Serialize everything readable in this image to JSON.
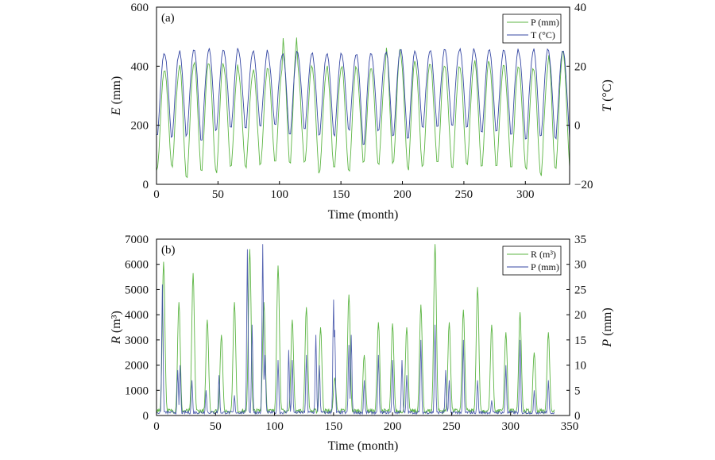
{
  "chart_data": [
    {
      "type": "line",
      "panel_label": "(a)",
      "xlabel": "Time (month)",
      "ylabel_left": {
        "italic": "E",
        "rest": " (mm)"
      },
      "ylabel_right": {
        "italic": "T",
        "rest": " (°C)"
      },
      "xlim": [
        0,
        336
      ],
      "ylim_left": [
        0,
        600
      ],
      "ylim_right": [
        -20,
        40
      ],
      "xticks": [
        0,
        50,
        100,
        150,
        200,
        250,
        300
      ],
      "yticks_left": [
        0,
        200,
        400,
        600
      ],
      "yticks_right": [
        -20,
        0,
        20,
        40
      ],
      "legend": {
        "position": "top-right",
        "entries": [
          "P (mm)",
          "T (°C)"
        ]
      },
      "colors": {
        "green": "#5cb543",
        "blue": "#3547a3"
      },
      "series": [
        {
          "name": "P (mm)",
          "axis": "left",
          "color_key": "green",
          "year_peaks": [
            390,
            385,
            410,
            420,
            415,
            405,
            380,
            395,
            400,
            505,
            405,
            395,
            400,
            400,
            395,
            395,
            470,
            430,
            415,
            410,
            395,
            405,
            420,
            410,
            400,
            395,
            395,
            450
          ],
          "year_troughs": [
            40,
            50,
            5,
            35,
            30,
            50,
            45,
            60,
            60,
            55,
            60,
            30,
            40,
            30,
            60,
            60,
            60,
            40,
            45,
            65,
            50,
            60,
            50,
            50,
            50,
            40,
            20,
            35
          ]
        },
        {
          "name": "T (°C)",
          "axis": "right",
          "color_key": "blue",
          "year_peaks": [
            25,
            24.5,
            25.5,
            25.5,
            26,
            26,
            25,
            25.5,
            24,
            25,
            24.5,
            24.5,
            24.5,
            24,
            24.5,
            24.5,
            25.5,
            26,
            25,
            25.5,
            25.5,
            26,
            25.5,
            26,
            26,
            25,
            26,
            25.5
          ],
          "year_troughs": [
            -5,
            -5.5,
            -5,
            -6.5,
            -3,
            -2.5,
            -2,
            -1.5,
            -1.5,
            -5,
            -3,
            -5,
            -5,
            -3,
            -8,
            -3,
            -5,
            -6.5,
            -2,
            -2,
            -1.5,
            -2,
            -3.5,
            -4,
            -4.5,
            -6,
            -5.5,
            -6
          ]
        }
      ]
    },
    {
      "type": "line",
      "panel_label": "(b)",
      "xlabel": "Time (month)",
      "ylabel_left": {
        "italic": "R",
        "rest": " (m³)"
      },
      "ylabel_right": {
        "italic": "P",
        "rest": " (mm)"
      },
      "xlim": [
        0,
        350
      ],
      "ylim_left": [
        0,
        7000
      ],
      "ylim_right": [
        0,
        35
      ],
      "xticks": [
        0,
        50,
        100,
        150,
        200,
        250,
        300,
        350
      ],
      "yticks_left": [
        0,
        1000,
        2000,
        3000,
        4000,
        5000,
        6000,
        7000
      ],
      "yticks_right": [
        0,
        5,
        10,
        15,
        20,
        25,
        30,
        35
      ],
      "legend": {
        "position": "top-right",
        "entries": [
          "R (m³)",
          "P (mm)"
        ]
      },
      "data_extent_months": 337,
      "series": [
        {
          "name": "R (m³)",
          "axis": "left",
          "color_key": "green",
          "baseline": 180,
          "peaks": [
            [
              6,
              6100
            ],
            [
              19,
              4500
            ],
            [
              31,
              5650
            ],
            [
              43,
              3800
            ],
            [
              55,
              3200
            ],
            [
              66,
              4500
            ],
            [
              79,
              6600
            ],
            [
              91,
              4500
            ],
            [
              103,
              5950
            ],
            [
              115,
              3800
            ],
            [
              127,
              4300
            ],
            [
              139,
              3500
            ],
            [
              151,
              1500
            ],
            [
              163,
              4800
            ],
            [
              176,
              2400
            ],
            [
              188,
              3700
            ],
            [
              200,
              3650
            ],
            [
              212,
              3500
            ],
            [
              224,
              4400
            ],
            [
              236,
              6800
            ],
            [
              248,
              3700
            ],
            [
              260,
              4200
            ],
            [
              272,
              5100
            ],
            [
              284,
              3600
            ],
            [
              296,
              3300
            ],
            [
              308,
              4100
            ],
            [
              320,
              2500
            ],
            [
              332,
              3300
            ]
          ]
        },
        {
          "name": "P (mm)",
          "axis": "right",
          "color_key": "blue",
          "baseline": 0.6,
          "peaks": [
            [
              5,
              26
            ],
            [
              18,
              9
            ],
            [
              20,
              10
            ],
            [
              30,
              7
            ],
            [
              42,
              5
            ],
            [
              53,
              8
            ],
            [
              66,
              4
            ],
            [
              77,
              33
            ],
            [
              81,
              18
            ],
            [
              90,
              34
            ],
            [
              92,
              12
            ],
            [
              103,
              11
            ],
            [
              112,
              13
            ],
            [
              115,
              11
            ],
            [
              127,
              12
            ],
            [
              135,
              16
            ],
            [
              138,
              10
            ],
            [
              150,
              23
            ],
            [
              151,
              17
            ],
            [
              163,
              14
            ],
            [
              165,
              16
            ],
            [
              176,
              7
            ],
            [
              188,
              12
            ],
            [
              200,
              11
            ],
            [
              208,
              11
            ],
            [
              212,
              8
            ],
            [
              224,
              15
            ],
            [
              236,
              18
            ],
            [
              245,
              9
            ],
            [
              248,
              7
            ],
            [
              260,
              15
            ],
            [
              272,
              7
            ],
            [
              284,
              3
            ],
            [
              296,
              10
            ],
            [
              308,
              15
            ],
            [
              320,
              5
            ],
            [
              332,
              7
            ]
          ]
        }
      ]
    }
  ]
}
